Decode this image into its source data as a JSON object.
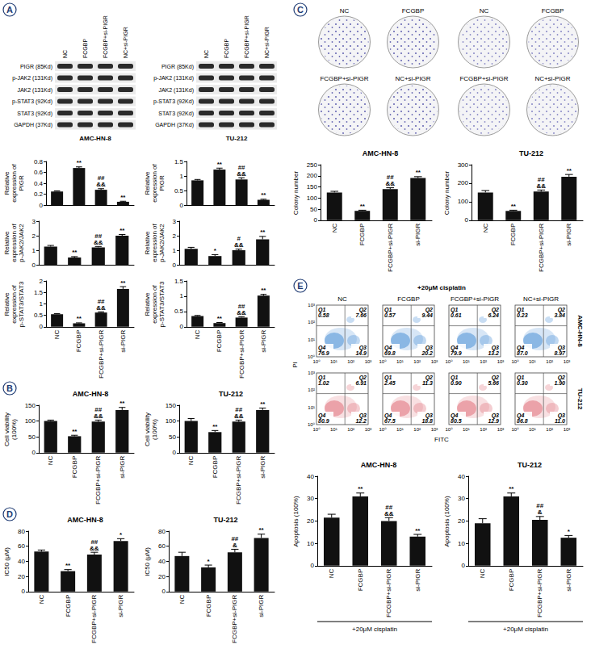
{
  "panel_labels": [
    "A",
    "B",
    "C",
    "D",
    "E"
  ],
  "western_blot": {
    "rows": [
      "PIGR (85Kd)",
      "p-JAK2 (131Kd)",
      "JAK2 (131Kd)",
      "p-STAT3 (92Kd)",
      "STAT3 (92Kd)",
      "GAPDH (37Kd)"
    ],
    "groups": [
      {
        "cell_line": "AMC-HN-8",
        "lanes": [
          "NC",
          "FCGBP",
          "FCGBP+si-PIGR",
          "NC+si-PIGR"
        ]
      },
      {
        "cell_line": "TU-212",
        "lanes": [
          "NC",
          "FCGBP",
          "FCGBP+si-PIGR",
          "NC+si-PIGR"
        ]
      }
    ]
  },
  "colony_assay": {
    "dishes": [
      [
        "NC",
        "FCGBP",
        "FCGBP+si-PIGR",
        "NC+si-PIGR"
      ],
      [
        "NC",
        "FCGBP",
        "FCGBP+si-PIGR",
        "NC+si-PIGR"
      ]
    ]
  },
  "flow_cytometry": {
    "treatment": "+20μM cisplatin",
    "x_label": "FITC",
    "y_label": "PI",
    "x_ticks": [
      "10⁰",
      "10¹",
      "10²",
      "10³"
    ],
    "y_ticks": [
      "10⁰",
      "10¹",
      "10²",
      "10³"
    ],
    "columns": [
      "NC",
      "FCGBP",
      "FCGBP+si-PIGR",
      "NC+si-PIGR"
    ],
    "rows": [
      {
        "cell_line": "AMC-HN-8",
        "color": "#4a8fd6",
        "quadrants": [
          [
            [
              "Q1",
              "0.58"
            ],
            [
              "Q2",
              "7.66"
            ],
            [
              "Q3",
              "14.9"
            ],
            [
              "Q4",
              "76.9"
            ]
          ],
          [
            [
              "Q1",
              "0.57"
            ],
            [
              "Q2",
              "9.44"
            ],
            [
              "Q3",
              "20.2"
            ],
            [
              "Q4",
              "69.8"
            ]
          ],
          [
            [
              "Q1",
              "0.61"
            ],
            [
              "Q2",
              "6.24"
            ],
            [
              "Q3",
              "13.2"
            ],
            [
              "Q4",
              "79.9"
            ]
          ],
          [
            [
              "Q1",
              "0.23"
            ],
            [
              "Q2",
              "3.84"
            ],
            [
              "Q3",
              "8.97"
            ],
            [
              "Q4",
              "87.0"
            ]
          ]
        ]
      },
      {
        "cell_line": "TU-212",
        "color": "#e0707a",
        "quadrants": [
          [
            [
              "Q1",
              "1.02"
            ],
            [
              "Q2",
              "6.91"
            ],
            [
              "Q3",
              "12.2"
            ],
            [
              "Q4",
              "80.9"
            ]
          ],
          [
            [
              "Q1",
              "2.45"
            ],
            [
              "Q2",
              "11.3"
            ],
            [
              "Q3",
              "18.8"
            ],
            [
              "Q4",
              "67.5"
            ]
          ],
          [
            [
              "Q1",
              "0.90"
            ],
            [
              "Q2",
              "5.66"
            ],
            [
              "Q3",
              "12.9"
            ],
            [
              "Q4",
              "80.5"
            ]
          ],
          [
            [
              "Q1",
              "0.30"
            ],
            [
              "Q2",
              "1.90"
            ],
            [
              "Q3",
              "11.0"
            ],
            [
              "Q4",
              "86.8"
            ]
          ]
        ]
      }
    ]
  },
  "chart_data": [
    {
      "type": "bar",
      "y_label": "Relative expression of PIGR",
      "categories": [
        "NC",
        "FCGBP",
        "FCGBP+si-PIGR",
        "si-PIGR"
      ],
      "values": [
        0.25,
        0.68,
        0.28,
        0.06
      ],
      "errors": [
        0.01,
        0.02,
        0.02,
        0.01
      ],
      "significance": [
        null,
        [
          "**"
        ],
        [
          "##",
          "&&"
        ],
        [
          "**"
        ]
      ],
      "color": "#111111",
      "ylim": [
        0,
        0.8
      ],
      "yticks": [
        0,
        0.2,
        0.4,
        0.6,
        0.8
      ],
      "grid": false,
      "tick_labels": "y"
    },
    {
      "type": "bar",
      "y_label": "Relative expression of PIGR",
      "categories": [
        "NC",
        "FCGBP",
        "FCGBP+si-PIGR",
        "si-PIGR"
      ],
      "values": [
        0.85,
        1.22,
        0.88,
        0.18
      ],
      "errors": [
        0.03,
        0.05,
        0.06,
        0.02
      ],
      "significance": [
        null,
        [
          "**"
        ],
        [
          "##",
          "&&"
        ],
        [
          "**"
        ]
      ],
      "color": "#111111",
      "ylim": [
        0,
        1.5
      ],
      "yticks": [
        0,
        0.5,
        1,
        1.5
      ],
      "grid": false,
      "tick_labels": "y"
    },
    {
      "type": "bar",
      "y_label": "Relative expression of p-JAK2/JAK2",
      "categories": [
        "NC",
        "FCGBP",
        "FCGBP+si-PIGR",
        "si-PIGR"
      ],
      "values": [
        1.25,
        0.5,
        1.2,
        2.0
      ],
      "errors": [
        0.08,
        0.06,
        0.06,
        0.08
      ],
      "significance": [
        null,
        [
          "**"
        ],
        [
          "##",
          "&&"
        ],
        [
          "**"
        ]
      ],
      "color": "#111111",
      "ylim": [
        0,
        3
      ],
      "yticks": [
        0,
        1,
        2,
        3
      ],
      "grid": false,
      "tick_labels": "y"
    },
    {
      "type": "bar",
      "y_label": "Relative expression of p-JAK2/JAK2",
      "categories": [
        "NC",
        "FCGBP",
        "FCGBP+si-PIGR",
        "si-PIGR"
      ],
      "values": [
        1.1,
        0.6,
        1.0,
        1.75
      ],
      "errors": [
        0.1,
        0.1,
        0.08,
        0.2
      ],
      "significance": [
        null,
        [
          "*"
        ],
        [
          "#",
          "&&"
        ],
        [
          "**"
        ]
      ],
      "color": "#111111",
      "ylim": [
        0,
        3
      ],
      "yticks": [
        0,
        1,
        2,
        3
      ],
      "grid": false,
      "tick_labels": "y"
    },
    {
      "type": "bar",
      "y_label": "Relative expression of p-STAT3/STAT3",
      "categories": [
        "NC",
        "FCGBP",
        "FCGBP+si-PIGR",
        "si-PIGR"
      ],
      "values": [
        0.55,
        0.15,
        0.62,
        1.65
      ],
      "errors": [
        0.02,
        0.02,
        0.03,
        0.1
      ],
      "significance": [
        null,
        [
          "**"
        ],
        [
          "##",
          "&&"
        ],
        [
          "**"
        ]
      ],
      "color": "#111111",
      "ylim": [
        0,
        2
      ],
      "yticks": [
        0,
        0.5,
        1,
        1.5,
        2
      ],
      "grid": false
    },
    {
      "type": "bar",
      "y_label": "Relative expression of p-STAT3/STAT3",
      "categories": [
        "NC",
        "FCGBP",
        "FCGBP+si-PIGR",
        "si-PIGR"
      ],
      "values": [
        0.35,
        0.12,
        0.3,
        1.02
      ],
      "errors": [
        0.02,
        0.02,
        0.03,
        0.04
      ],
      "significance": [
        null,
        [
          "**"
        ],
        [
          "##",
          "&&"
        ],
        [
          "**"
        ]
      ],
      "color": "#111111",
      "ylim": [
        0,
        1.5
      ],
      "yticks": [
        0,
        0.5,
        1,
        1.5
      ],
      "grid": false
    },
    {
      "type": "bar",
      "title": "AMC-HN-8",
      "y_label": "Cell viability (100%)",
      "categories": [
        "NC",
        "FCGBP",
        "FCGBP+si-PIGR",
        "si-PIGR"
      ],
      "values": [
        100,
        52,
        98,
        135
      ],
      "errors": [
        3,
        3,
        5,
        8
      ],
      "significance": [
        null,
        [
          "**"
        ],
        [
          "##",
          "&&"
        ],
        [
          "**"
        ]
      ],
      "color": "#111111",
      "ylim": [
        0,
        150
      ],
      "yticks": [
        0,
        50,
        100,
        150
      ],
      "grid": false
    },
    {
      "type": "bar",
      "title": "TU-212",
      "y_label": "Cell viability (100%)",
      "categories": [
        "NC",
        "FCGBP",
        "FCGBP+si-PIGR",
        "si-PIGR"
      ],
      "values": [
        100,
        65,
        98,
        135
      ],
      "errors": [
        8,
        5,
        5,
        6
      ],
      "significance": [
        null,
        [
          "**"
        ],
        [
          "##",
          "&&"
        ],
        [
          "**"
        ]
      ],
      "color": "#111111",
      "ylim": [
        0,
        150
      ],
      "yticks": [
        0,
        50,
        100,
        150
      ],
      "grid": false
    },
    {
      "type": "bar",
      "title": "AMC-HN-8",
      "y_label": "Colony number",
      "categories": [
        "NC",
        "FCGBP",
        "FCGBP+si-PIGR",
        "si-PIGR"
      ],
      "values": [
        125,
        42,
        140,
        190
      ],
      "errors": [
        5,
        3,
        6,
        6
      ],
      "significance": [
        null,
        [
          "**"
        ],
        [
          "##",
          "&&"
        ],
        [
          "**"
        ]
      ],
      "color": "#111111",
      "ylim": [
        0,
        250
      ],
      "yticks": [
        0,
        50,
        100,
        150,
        200,
        250
      ],
      "grid": false
    },
    {
      "type": "bar",
      "title": "TU-212",
      "y_label": "Colony number",
      "categories": [
        "NC",
        "FCGBP",
        "FCGBP+si-PIGR",
        "si-PIGR"
      ],
      "values": [
        150,
        50,
        155,
        235
      ],
      "errors": [
        10,
        4,
        8,
        12
      ],
      "significance": [
        null,
        [
          "**"
        ],
        [
          "##",
          "&&"
        ],
        [
          "**"
        ]
      ],
      "color": "#111111",
      "ylim": [
        0,
        300
      ],
      "yticks": [
        0,
        100,
        200,
        300
      ],
      "grid": false
    },
    {
      "type": "bar",
      "title": "AMC-HN-8",
      "y_label": "IC50 (μM)",
      "categories": [
        "NC",
        "FCGBP",
        "FCGBP+si-PIGR",
        "si-PIGR"
      ],
      "values": [
        53,
        27,
        49,
        67
      ],
      "errors": [
        2,
        2,
        3,
        3
      ],
      "significance": [
        null,
        [
          "**"
        ],
        [
          "##",
          "&&"
        ],
        [
          "*"
        ]
      ],
      "color": "#111111",
      "ylim": [
        0,
        80
      ],
      "yticks": [
        0,
        20,
        40,
        60,
        80
      ],
      "grid": false
    },
    {
      "type": "bar",
      "title": "TU-212",
      "y_label": "IC50 (μM)",
      "categories": [
        "NC",
        "FCGBP",
        "FCGBP+si-PIGR",
        "si-PIGR"
      ],
      "values": [
        47,
        32,
        52,
        71
      ],
      "errors": [
        5,
        3,
        4,
        5
      ],
      "significance": [
        null,
        [
          "*"
        ],
        [
          "##",
          "&"
        ],
        [
          "**"
        ]
      ],
      "color": "#111111",
      "ylim": [
        0,
        80
      ],
      "yticks": [
        0,
        20,
        40,
        60,
        80
      ],
      "grid": false
    },
    {
      "type": "bar",
      "title": "AMC-HN-8",
      "y_label": "Apoptosis (100%)",
      "x_annotation": "+20μM cisplatin",
      "categories": [
        "NC",
        "FCGBP",
        "FCGBP+si-PIGR",
        "si-PIGR"
      ],
      "values": [
        21.5,
        31,
        20,
        13
      ],
      "errors": [
        1.5,
        1.5,
        1.5,
        1
      ],
      "significance": [
        null,
        [
          "**"
        ],
        [
          "##",
          "&&"
        ],
        [
          "**"
        ]
      ],
      "color": "#111111",
      "ylim": [
        0,
        40
      ],
      "yticks": [
        0,
        10,
        20,
        30,
        40
      ],
      "grid": false
    },
    {
      "type": "bar",
      "title": "TU-212",
      "y_label": "Apoptosis (100%)",
      "x_annotation": "+20μM cisplatin",
      "categories": [
        "NC",
        "FCGBP",
        "FCGBP+si-PIGR",
        "si-PIGR"
      ],
      "values": [
        19,
        31,
        20.5,
        12.5
      ],
      "errors": [
        2,
        1.5,
        1.5,
        1
      ],
      "significance": [
        null,
        [
          "**"
        ],
        [
          "##",
          "&"
        ],
        [
          "*"
        ]
      ],
      "color": "#111111",
      "ylim": [
        0,
        40
      ],
      "yticks": [
        0,
        10,
        20,
        30,
        40
      ],
      "grid": false
    }
  ]
}
